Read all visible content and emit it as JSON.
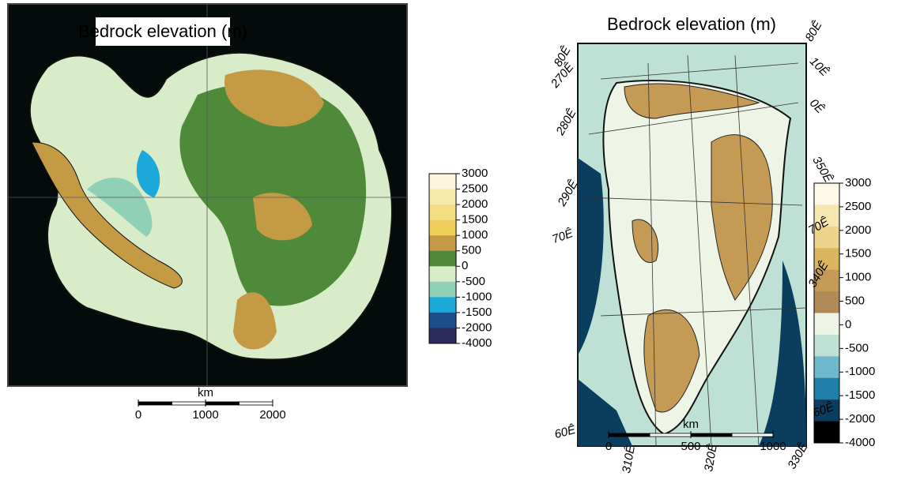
{
  "left_map": {
    "title": "Bedrock elevation (m)",
    "colorbar": {
      "labels": [
        3000,
        2500,
        2000,
        1500,
        1000,
        500,
        0,
        -500,
        -1000,
        -1500,
        -2000,
        -4000
      ],
      "colors": [
        "#fdf6dc",
        "#f8e9ad",
        "#f4de84",
        "#efd05a",
        "#c49a45",
        "#4e8a3a",
        "#d9ecc9",
        "#90d0b6",
        "#1ca9d9",
        "#1c4f8b",
        "#2b2b5c"
      ]
    },
    "scale_bar": {
      "unit": "km",
      "ticks": [
        0,
        1000,
        2000
      ]
    }
  },
  "right_map": {
    "title": "Bedrock elevation (m)",
    "colorbar": {
      "labels": [
        3000,
        2500,
        2000,
        1500,
        1000,
        500,
        0,
        -500,
        -1000,
        -1500,
        -2000,
        -4000
      ],
      "colors": [
        "#fdf8e8",
        "#f6e6b0",
        "#eed48a",
        "#dcb560",
        "#c59a55",
        "#b28a58",
        "#eef4e6",
        "#bfe0d4",
        "#6fb8cc",
        "#1f7fa8",
        "#0b3d5e",
        "#000000"
      ]
    },
    "graticule_labels": [
      "80Ê",
      "10Ê",
      "0Ê",
      "350Ê",
      "70Ê",
      "340Ê",
      "60Ê",
      "330Ê",
      "320Ê",
      "310Ê",
      "60Ê",
      "70Ê",
      "290Ê",
      "280Ê",
      "270Ê",
      "80Ê"
    ],
    "scale_bar": {
      "unit": "km",
      "ticks": [
        0,
        500,
        1000
      ]
    }
  }
}
